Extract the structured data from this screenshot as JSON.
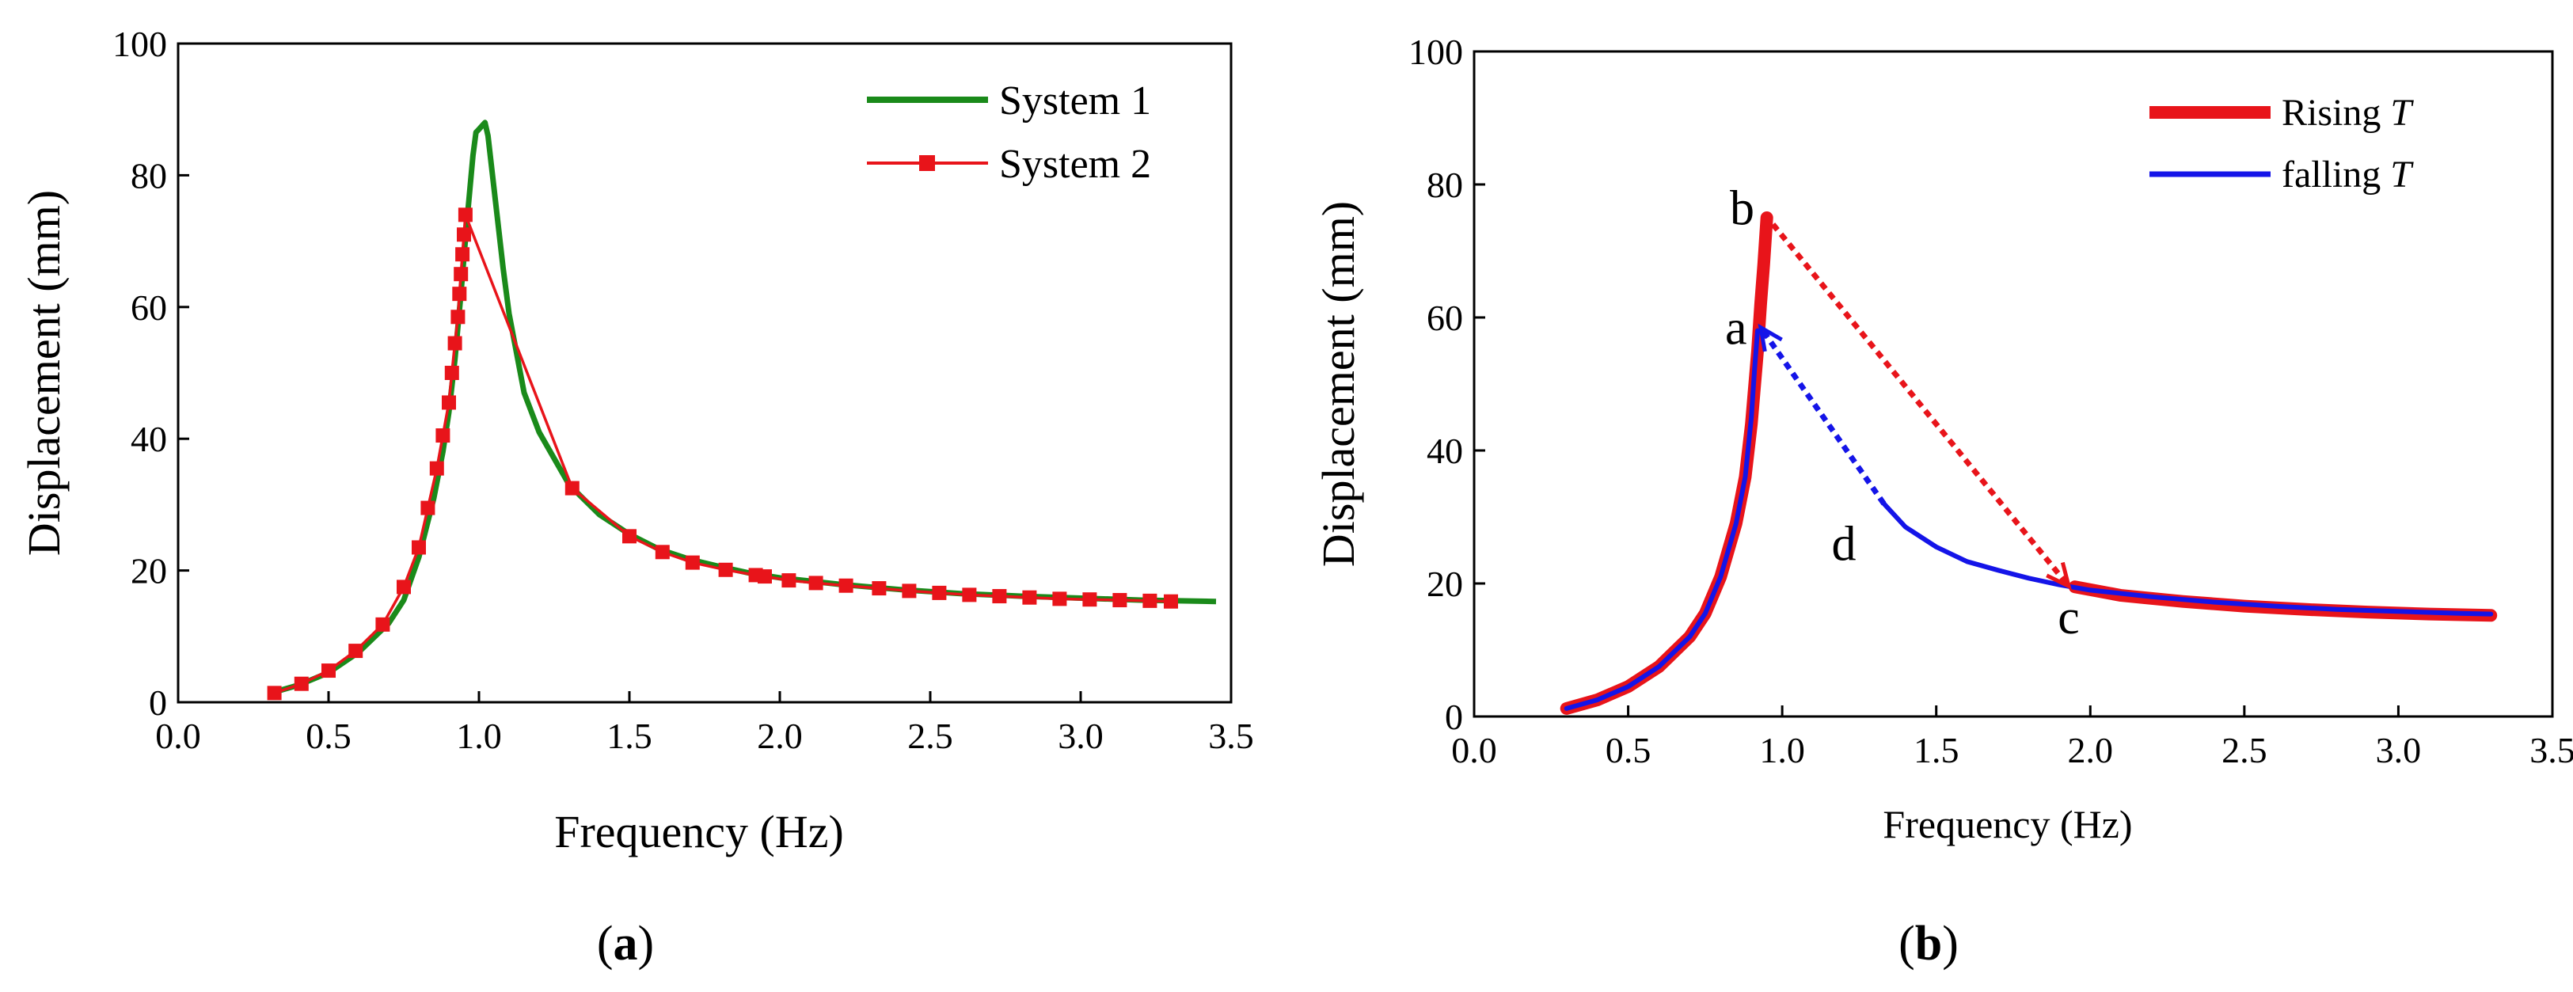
{
  "chart_data": [
    {
      "id": "a",
      "type": "line",
      "caption_open": "(",
      "caption_letter": "a",
      "caption_close": ")",
      "xlabel": "Frequency (Hz)",
      "ylabel": "Displacement (mm)",
      "xlim": [
        0,
        3.5
      ],
      "ylim": [
        0,
        100
      ],
      "xticks": [
        0.0,
        0.5,
        1.0,
        1.5,
        2.0,
        2.5,
        3.0,
        3.5
      ],
      "xtick_labels": [
        "0.0",
        "0.5",
        "1.0",
        "1.5",
        "2.0",
        "2.5",
        "3.0",
        "3.5"
      ],
      "yticks": [
        0,
        20,
        40,
        60,
        80,
        100
      ],
      "ytick_labels": [
        "0",
        "20",
        "40",
        "60",
        "80",
        "100"
      ],
      "legend_position": "top-right",
      "series": [
        {
          "name": "System 1",
          "color": "#1a8a1a",
          "marker": "none",
          "points": [
            [
              0.3,
              1.3
            ],
            [
              0.4,
              2.6
            ],
            [
              0.5,
              4.5
            ],
            [
              0.6,
              7.6
            ],
            [
              0.7,
              12.0
            ],
            [
              0.75,
              15.5
            ],
            [
              0.8,
              22.0
            ],
            [
              0.85,
              31.0
            ],
            [
              0.88,
              38.0
            ],
            [
              0.9,
              44.0
            ],
            [
              0.92,
              52.0
            ],
            [
              0.94,
              62.0
            ],
            [
              0.96,
              73.0
            ],
            [
              0.98,
              83.0
            ],
            [
              0.99,
              86.5
            ],
            [
              1.0,
              87.0
            ],
            [
              1.01,
              87.5
            ],
            [
              1.02,
              88.0
            ],
            [
              1.03,
              86.0
            ],
            [
              1.05,
              78.0
            ],
            [
              1.08,
              66.0
            ],
            [
              1.1,
              59.0
            ],
            [
              1.15,
              47.0
            ],
            [
              1.2,
              41.0
            ],
            [
              1.3,
              33.0
            ],
            [
              1.4,
              28.5
            ],
            [
              1.5,
              25.5
            ],
            [
              1.6,
              23.2
            ],
            [
              1.7,
              21.7
            ],
            [
              1.8,
              20.6
            ],
            [
              1.9,
              19.6
            ],
            [
              2.0,
              18.9
            ],
            [
              2.2,
              17.9
            ],
            [
              2.4,
              17.1
            ],
            [
              2.6,
              16.5
            ],
            [
              2.8,
              16.1
            ],
            [
              3.0,
              15.8
            ],
            [
              3.2,
              15.5
            ],
            [
              3.45,
              15.3
            ]
          ]
        },
        {
          "name": "System 2",
          "color": "#e8141a",
          "marker": "square",
          "points": [
            [
              0.32,
              1.4
            ],
            [
              0.41,
              2.8
            ],
            [
              0.5,
              4.8
            ],
            [
              0.59,
              7.8
            ],
            [
              0.68,
              11.8
            ],
            [
              0.75,
              17.5
            ],
            [
              0.8,
              23.5
            ],
            [
              0.83,
              29.5
            ],
            [
              0.86,
              35.5
            ],
            [
              0.88,
              40.5
            ],
            [
              0.9,
              45.5
            ],
            [
              0.91,
              50.0
            ],
            [
              0.92,
              54.5
            ],
            [
              0.93,
              58.5
            ],
            [
              0.935,
              62.0
            ],
            [
              0.94,
              65.0
            ],
            [
              0.945,
              68.0
            ],
            [
              0.95,
              71.0
            ],
            [
              0.955,
              74.0
            ],
            [
              1.31,
              32.5
            ],
            [
              1.5,
              25.2
            ],
            [
              1.61,
              22.8
            ],
            [
              1.71,
              21.2
            ],
            [
              1.82,
              20.1
            ],
            [
              1.92,
              19.3
            ],
            [
              1.95,
              19.1
            ],
            [
              2.03,
              18.5
            ],
            [
              2.12,
              18.1
            ],
            [
              2.22,
              17.7
            ],
            [
              2.33,
              17.3
            ],
            [
              2.43,
              16.9
            ],
            [
              2.53,
              16.6
            ],
            [
              2.63,
              16.3
            ],
            [
              2.73,
              16.1
            ],
            [
              2.83,
              15.9
            ],
            [
              2.93,
              15.7
            ],
            [
              3.03,
              15.6
            ],
            [
              3.13,
              15.5
            ],
            [
              3.23,
              15.4
            ],
            [
              3.3,
              15.3
            ]
          ]
        }
      ]
    },
    {
      "id": "b",
      "type": "line",
      "caption_open": "(",
      "caption_letter": "b",
      "caption_close": ")",
      "xlabel": "Frequency (Hz)",
      "ylabel": "Displacement (mm)",
      "xlim": [
        0,
        3.5
      ],
      "ylim": [
        0,
        100
      ],
      "xticks": [
        0.0,
        0.5,
        1.0,
        1.5,
        2.0,
        2.5,
        3.0,
        3.5
      ],
      "xtick_labels": [
        "0.0",
        "0.5",
        "1.0",
        "1.5",
        "2.0",
        "2.5",
        "3.0",
        "3.5"
      ],
      "yticks": [
        0,
        20,
        40,
        60,
        80,
        100
      ],
      "ytick_labels": [
        "0",
        "20",
        "40",
        "60",
        "80",
        "100"
      ],
      "legend_position": "top-right",
      "series": [
        {
          "name_prefix": "Rising ",
          "name_var": "T",
          "color": "#e8141a",
          "style": "thick",
          "points": [
            [
              0.3,
              1.2
            ],
            [
              0.4,
              2.5
            ],
            [
              0.5,
              4.5
            ],
            [
              0.6,
              7.5
            ],
            [
              0.7,
              12.0
            ],
            [
              0.75,
              15.5
            ],
            [
              0.8,
              21.0
            ],
            [
              0.85,
              29.0
            ],
            [
              0.88,
              36.0
            ],
            [
              0.9,
              44.0
            ],
            [
              0.92,
              55.0
            ],
            [
              0.93,
              62.0
            ],
            [
              0.94,
              68.0
            ],
            [
              0.95,
              75.0
            ]
          ],
          "points_tail": [
            [
              1.95,
              19.5
            ],
            [
              2.1,
              18.2
            ],
            [
              2.3,
              17.3
            ],
            [
              2.5,
              16.6
            ],
            [
              2.7,
              16.1
            ],
            [
              2.9,
              15.7
            ],
            [
              3.1,
              15.4
            ],
            [
              3.3,
              15.2
            ]
          ]
        },
        {
          "name_prefix": "falling ",
          "name_var": "T",
          "color": "#1414e8",
          "style": "thin",
          "points": [
            [
              0.3,
              1.2
            ],
            [
              0.4,
              2.5
            ],
            [
              0.5,
              4.5
            ],
            [
              0.6,
              7.5
            ],
            [
              0.7,
              12.0
            ],
            [
              0.75,
              15.5
            ],
            [
              0.8,
              21.0
            ],
            [
              0.85,
              29.0
            ],
            [
              0.88,
              36.0
            ],
            [
              0.9,
              45.0
            ],
            [
              0.91,
              52.0
            ],
            [
              0.92,
              58.0
            ]
          ],
          "points_tail": [
            [
              1.33,
              32.0
            ],
            [
              1.4,
              28.5
            ],
            [
              1.5,
              25.5
            ],
            [
              1.6,
              23.3
            ],
            [
              1.7,
              22.0
            ],
            [
              1.8,
              20.8
            ],
            [
              1.9,
              19.8
            ],
            [
              2.0,
              19.0
            ],
            [
              2.2,
              18.0
            ],
            [
              2.4,
              17.2
            ],
            [
              2.6,
              16.6
            ],
            [
              2.8,
              16.1
            ],
            [
              3.0,
              15.8
            ],
            [
              3.2,
              15.5
            ],
            [
              3.3,
              15.4
            ]
          ]
        }
      ],
      "jumps": [
        {
          "from": [
            0.97,
            74.0
          ],
          "to": [
            1.93,
            19.6
          ],
          "color": "#e8141a"
        },
        {
          "from": [
            1.33,
            32.0
          ],
          "to": [
            0.93,
            58.5
          ],
          "color": "#1414e8"
        }
      ],
      "annotations": [
        {
          "text": "a",
          "x": 0.85,
          "y": 56
        },
        {
          "text": "b",
          "x": 0.87,
          "y": 74
        },
        {
          "text": "c",
          "x": 1.93,
          "y": 12.5
        },
        {
          "text": "d",
          "x": 1.2,
          "y": 23.5
        }
      ]
    }
  ]
}
